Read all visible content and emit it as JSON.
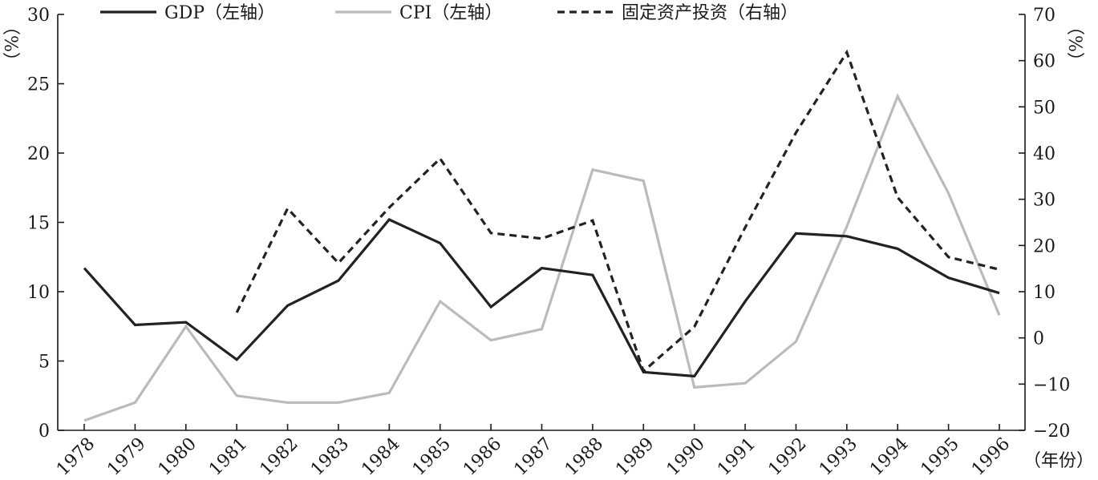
{
  "chart_data": {
    "type": "line",
    "x": [
      "1978",
      "1979",
      "1980",
      "1981",
      "1982",
      "1983",
      "1984",
      "1985",
      "1986",
      "1987",
      "1988",
      "1989",
      "1990",
      "1991",
      "1992",
      "1993",
      "1994",
      "1995",
      "1996"
    ],
    "xlabel": "（年份）",
    "ylabel_left": "（%）",
    "ylabel_right": "（%）",
    "ylim_left": [
      0,
      30
    ],
    "ylim_right": [
      -20,
      70
    ],
    "yticks_left": [
      0,
      5,
      10,
      15,
      20,
      25,
      30
    ],
    "yticks_right": [
      -20,
      -10,
      0,
      10,
      20,
      30,
      40,
      50,
      60,
      70
    ],
    "legend_position": "top",
    "grid": false,
    "series": [
      {
        "name": "GDP（左轴）",
        "axis": "left",
        "style": "solid",
        "color": "#222222",
        "values": [
          11.7,
          7.6,
          7.8,
          5.1,
          9.0,
          10.8,
          15.2,
          13.5,
          8.9,
          11.7,
          11.2,
          4.2,
          3.9,
          9.3,
          14.2,
          14.0,
          13.1,
          11.0,
          9.9
        ]
      },
      {
        "name": "CPI（左轴）",
        "axis": "left",
        "style": "solid",
        "color": "#bbbbbb",
        "values": [
          0.7,
          2.0,
          7.5,
          2.5,
          2.0,
          2.0,
          2.7,
          9.3,
          6.5,
          7.3,
          18.8,
          18.0,
          3.1,
          3.4,
          6.4,
          14.7,
          24.1,
          17.1,
          8.3
        ]
      },
      {
        "name": "固定资产投资（右轴）",
        "axis": "right",
        "style": "dashed",
        "color": "#222222",
        "values": [
          null,
          null,
          null,
          5.5,
          28.0,
          16.2,
          28.2,
          38.8,
          22.7,
          21.5,
          25.4,
          -7.2,
          2.4,
          23.9,
          44.4,
          61.8,
          30.4,
          17.5,
          14.8
        ]
      }
    ]
  }
}
